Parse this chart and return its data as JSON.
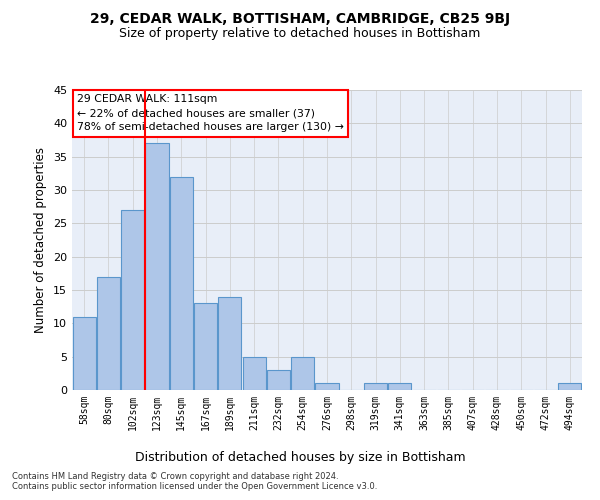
{
  "title": "29, CEDAR WALK, BOTTISHAM, CAMBRIDGE, CB25 9BJ",
  "subtitle": "Size of property relative to detached houses in Bottisham",
  "xlabel": "Distribution of detached houses by size in Bottisham",
  "ylabel": "Number of detached properties",
  "categories": [
    "58sqm",
    "80sqm",
    "102sqm",
    "123sqm",
    "145sqm",
    "167sqm",
    "189sqm",
    "211sqm",
    "232sqm",
    "254sqm",
    "276sqm",
    "298sqm",
    "319sqm",
    "341sqm",
    "363sqm",
    "385sqm",
    "407sqm",
    "428sqm",
    "450sqm",
    "472sqm",
    "494sqm"
  ],
  "values": [
    11,
    17,
    27,
    37,
    32,
    13,
    14,
    5,
    3,
    5,
    1,
    0,
    1,
    1,
    0,
    0,
    0,
    0,
    0,
    0,
    1
  ],
  "bar_color": "#aec6e8",
  "bar_edge_color": "#5a96cc",
  "annotation_text": "29 CEDAR WALK: 111sqm\n← 22% of detached houses are smaller (37)\n78% of semi-detached houses are larger (130) →",
  "annotation_box_color": "white",
  "annotation_box_edge_color": "red",
  "ylim": [
    0,
    45
  ],
  "yticks": [
    0,
    5,
    10,
    15,
    20,
    25,
    30,
    35,
    40,
    45
  ],
  "grid_color": "#cccccc",
  "bg_color": "#e8eef8",
  "footer_line1": "Contains HM Land Registry data © Crown copyright and database right 2024.",
  "footer_line2": "Contains public sector information licensed under the Open Government Licence v3.0."
}
